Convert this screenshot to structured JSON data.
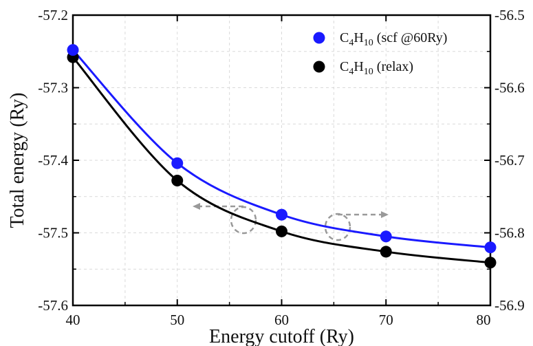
{
  "chart_data": {
    "type": "line",
    "title": "",
    "xlabel": "Energy cutoff (Ry)",
    "ylabel": "Total energy (Ry)",
    "xlim": [
      40,
      80
    ],
    "ylim": [
      -57.6,
      -57.2
    ],
    "y2lim": [
      -56.9,
      -56.5
    ],
    "x_ticks": [
      "40",
      "50",
      "60",
      "70",
      "80"
    ],
    "y_ticks": [
      "-57.2",
      "-57.3",
      "-57.4",
      "-57.5",
      "-57.6"
    ],
    "y2_ticks": [
      "-56.5",
      "-56.6",
      "-56.7",
      "-56.8",
      "-56.9"
    ],
    "grid": true,
    "legend_position": "top-right",
    "series": [
      {
        "name": "C4H10 (scf @60Ry)",
        "legend_parts": [
          "C",
          "4",
          "H",
          "10",
          " (scf @60Ry)"
        ],
        "axis": "left",
        "color": "#1a1aff",
        "x": [
          40,
          50,
          60,
          70,
          80
        ],
        "y": [
          -57.248,
          -57.404,
          -57.475,
          -57.505,
          -57.52
        ]
      },
      {
        "name": "C4H10 (relax)",
        "legend_parts": [
          "C",
          "4",
          "H",
          "10",
          " (relax)"
        ],
        "axis": "right",
        "color": "#000000",
        "x": [
          40,
          50,
          60,
          70,
          80
        ],
        "y": [
          -56.558,
          -56.728,
          -56.798,
          -56.826,
          -56.841
        ]
      }
    ],
    "annotations": [
      {
        "type": "axis-indicator",
        "series": "C4H10 (scf @60Ry)",
        "points_to": "left-axis",
        "color": "#999999"
      },
      {
        "type": "axis-indicator",
        "series": "C4H10 (relax)",
        "points_to": "right-axis",
        "color": "#999999"
      }
    ]
  }
}
